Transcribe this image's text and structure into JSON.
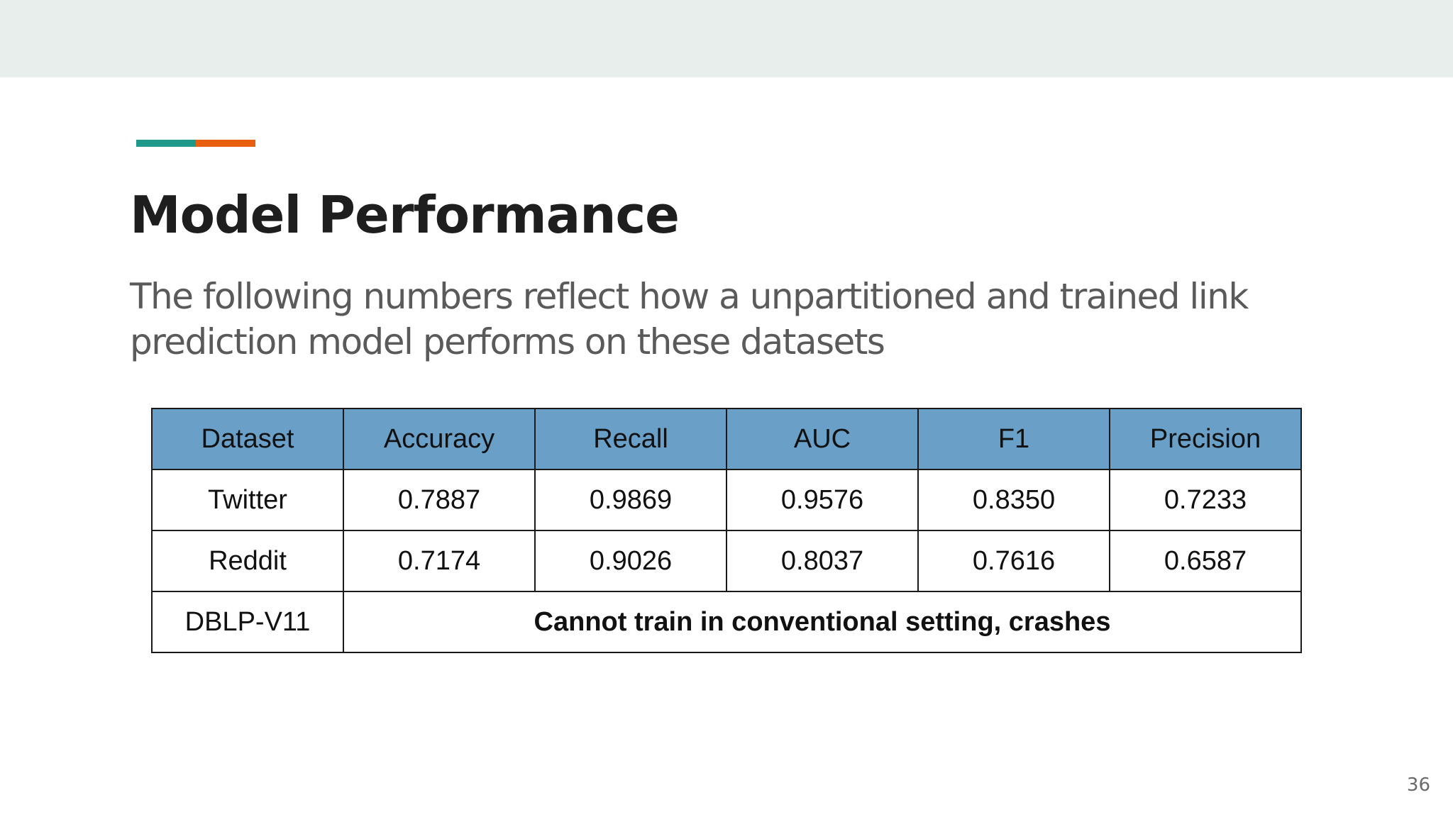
{
  "slide": {
    "title": "Model Performance",
    "subtitle": "The following numbers reflect how a unpartitioned and trained link prediction model performs on these datasets",
    "page_number": "36",
    "colors": {
      "top_bar": "#e8eeec",
      "accent_teal": "#1f9a8a",
      "accent_orange": "#e8600f",
      "table_header": "#6aa0c8"
    }
  },
  "table": {
    "headers": [
      "Dataset",
      "Accuracy",
      "Recall",
      "AUC",
      "F1",
      "Precision"
    ],
    "rows": [
      [
        "Twitter",
        "0.7887",
        "0.9869",
        "0.9576",
        "0.8350",
        "0.7233"
      ],
      [
        "Reddit",
        "0.7174",
        "0.9026",
        "0.8037",
        "0.7616",
        "0.6587"
      ]
    ],
    "last_row": {
      "dataset": "DBLP-V11",
      "note": "Cannot train in conventional setting, crashes"
    }
  }
}
